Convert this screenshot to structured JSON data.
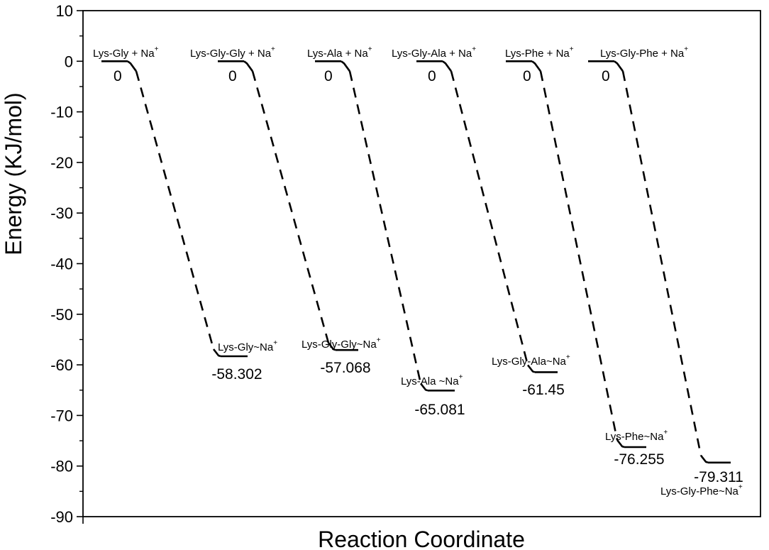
{
  "chart_data": {
    "type": "line",
    "title": "",
    "xlabel": "Reaction Coordinate",
    "ylabel": "Energy (KJ/mol)",
    "ylim": [
      -90,
      10
    ],
    "yticks": [
      "10",
      "0",
      "-10",
      "-20",
      "-30",
      "-40",
      "-50",
      "-60",
      "-70",
      "-80",
      "-90"
    ],
    "grid": false,
    "legend": "none",
    "line_color": "#000000",
    "series": [
      {
        "reactant_label": "Lys-Gly + Na",
        "product_label": "Lys-Gly~Na",
        "reactant_energy": 0,
        "product_energy": -58.302,
        "reactant_value_text": "0",
        "product_value_text": "-58.302"
      },
      {
        "reactant_label": "Lys-Gly-Gly + Na",
        "product_label": "Lys-Gly-Gly~Na",
        "reactant_energy": 0,
        "product_energy": -57.068,
        "reactant_value_text": "0",
        "product_value_text": "-57.068"
      },
      {
        "reactant_label": "Lys-Ala + Na",
        "product_label": "Lys-Ala ~Na",
        "reactant_energy": 0,
        "product_energy": -65.081,
        "reactant_value_text": "0",
        "product_value_text": "-65.081"
      },
      {
        "reactant_label": "Lys-Gly-Ala + Na",
        "product_label": "Lys-Gly-Ala~Na",
        "reactant_energy": 0,
        "product_energy": -61.45,
        "reactant_value_text": "0",
        "product_value_text": "-61.45"
      },
      {
        "reactant_label": "Lys-Phe + Na",
        "product_label": "Lys-Phe~Na",
        "reactant_energy": 0,
        "product_energy": -76.255,
        "reactant_value_text": "0",
        "product_value_text": "-76.255"
      },
      {
        "reactant_label": "Lys-Gly-Phe + Na",
        "product_label": "Lys-Gly-Phe~Na",
        "reactant_energy": 0,
        "product_energy": -79.311,
        "reactant_value_text": "0",
        "product_value_text": "-79.311"
      }
    ],
    "superscript": "+"
  }
}
